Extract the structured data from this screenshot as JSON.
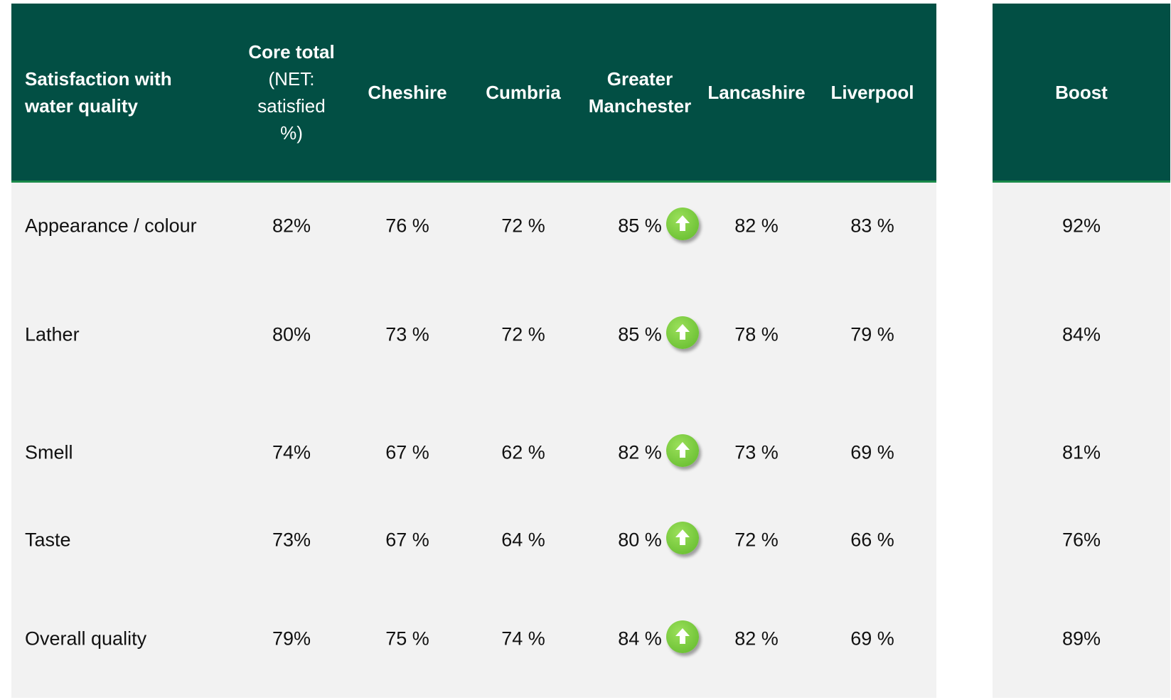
{
  "table": {
    "header": {
      "title": "Satisfaction with water quality",
      "core": "Core total",
      "core_note": "(NET: satisfied %)",
      "columns": [
        "Cheshire",
        "Cumbria",
        "Greater Manchester",
        "Lancashire",
        "Liverpool"
      ],
      "boost": "Boost"
    },
    "rows": [
      {
        "label": "Appearance / colour",
        "core": "82%",
        "values": [
          "76 %",
          "72 %",
          "85 %",
          "82 %",
          "83 %"
        ],
        "boost": "92%"
      },
      {
        "label": "Lather",
        "core": "80%",
        "values": [
          "73 %",
          "72 %",
          "85 %",
          "78 %",
          "79 %"
        ],
        "boost": "84%"
      },
      {
        "label": "Smell",
        "core": "74%",
        "values": [
          "67 %",
          "62 %",
          "82 %",
          "73 %",
          "69 %"
        ],
        "boost": "81%"
      },
      {
        "label": "Taste",
        "core": "73%",
        "values": [
          "67 %",
          "64 %",
          "80 %",
          "72 %",
          "66 %"
        ],
        "boost": "76%"
      },
      {
        "label": "Overall quality",
        "core": "79%",
        "values": [
          "75 %",
          "74 %",
          "84 %",
          "82 %",
          "69 %"
        ],
        "boost": "89%"
      }
    ]
  }
}
